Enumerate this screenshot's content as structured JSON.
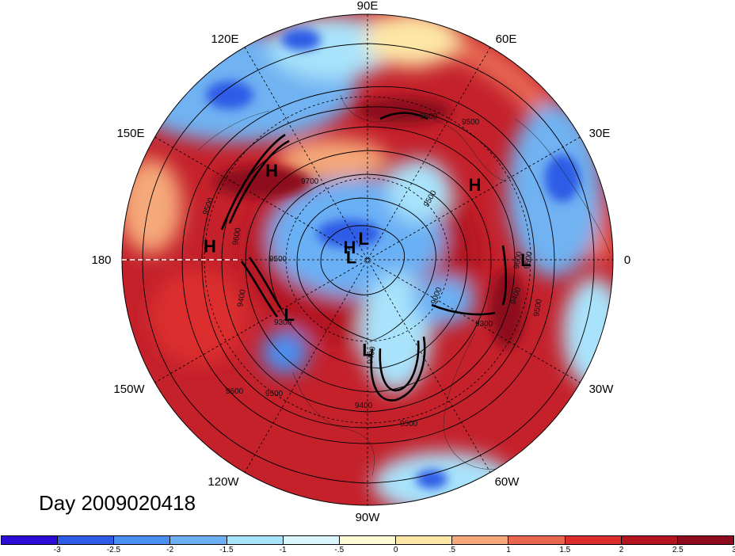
{
  "title": "Day 2009020418",
  "longitude_labels": {
    "deg90E": "90E",
    "deg60E": "60E",
    "deg30E": "30E",
    "deg0": "0",
    "deg30W": "30W",
    "deg60W": "60W",
    "deg90W": "90W",
    "deg120W": "120W",
    "deg150W": "150W",
    "deg180": "180",
    "deg150E": "150E",
    "deg120E": "120E"
  },
  "pressure_centers": [
    {
      "label": "H",
      "lon": 137,
      "lat": 42
    },
    {
      "label": "H",
      "lon": 35,
      "lat": 42
    },
    {
      "label": "H",
      "lon": 175,
      "lat": 32
    },
    {
      "label": "H",
      "lon": 145,
      "lat": 82
    },
    {
      "label": "L",
      "lon": 100,
      "lat": 82
    },
    {
      "label": "L",
      "lon": 170,
      "lat": 84
    },
    {
      "label": "L",
      "lon": 0,
      "lat": 32
    },
    {
      "label": "L",
      "lon": 215,
      "lat": 55
    },
    {
      "label": "L",
      "lon": 270,
      "lat": 57
    }
  ],
  "contour_labels": [
    "9600",
    "9500",
    "9700",
    "9500",
    "9500",
    "9600",
    "9500",
    "9400",
    "9300",
    "9000",
    "9600",
    "9500",
    "9300",
    "9400",
    "9400",
    "9500",
    "9400",
    "9500",
    "9600",
    "9500"
  ],
  "colorbar": {
    "colors": [
      "#2b0bd6",
      "#2e5ce6",
      "#4b8ff0",
      "#6bb0f5",
      "#a6e4fb",
      "#dcf6fd",
      "#fdfad6",
      "#fde6a6",
      "#f5a879",
      "#e9664f",
      "#dc2d2d",
      "#b41420",
      "#8e0b1d"
    ],
    "labels": [
      "-3",
      "-2.5",
      "-2",
      "-1.5",
      "-1",
      "-.5",
      "0",
      ".5",
      "1",
      "1.5",
      "2",
      "2.5",
      "3"
    ]
  }
}
